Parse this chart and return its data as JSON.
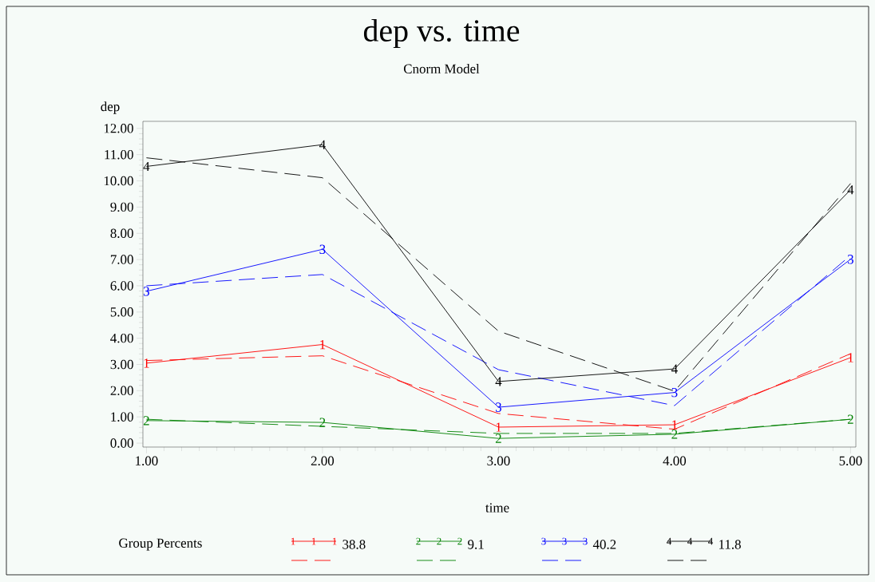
{
  "chart_data": {
    "type": "line",
    "title": "dep vs. time",
    "subtitle": "Cnorm Model",
    "xlabel": "time",
    "ylabel": "dep",
    "legend_title": "Group Percents",
    "legend": "bottom",
    "grid": false,
    "x": [
      1,
      2,
      3,
      4,
      5
    ],
    "xlim": [
      0.98,
      5.03
    ],
    "ylim": [
      -0.15,
      12.27
    ],
    "xticks": [
      {
        "value": 1,
        "label": "1.00"
      },
      {
        "value": 2,
        "label": "2.00"
      },
      {
        "value": 3,
        "label": "3.00"
      },
      {
        "value": 4,
        "label": "4.00"
      },
      {
        "value": 5,
        "label": "5.00"
      }
    ],
    "yticks": [
      {
        "value": 0,
        "label": "0.00"
      },
      {
        "value": 1,
        "label": "1.00"
      },
      {
        "value": 2,
        "label": "2.00"
      },
      {
        "value": 3,
        "label": "3.00"
      },
      {
        "value": 4,
        "label": "4.00"
      },
      {
        "value": 5,
        "label": "5.00"
      },
      {
        "value": 6,
        "label": "6.00"
      },
      {
        "value": 7,
        "label": "7.00"
      },
      {
        "value": 8,
        "label": "8.00"
      },
      {
        "value": 9,
        "label": "9.00"
      },
      {
        "value": 10,
        "label": "10.00"
      },
      {
        "value": 11,
        "label": "11.00"
      },
      {
        "value": 12,
        "label": "12.00"
      }
    ],
    "annotations": [
      {
        "text": "1",
        "x": 1,
        "y": 3.05
      },
      {
        "text": "1",
        "x": 2,
        "y": 3.76
      },
      {
        "text": "1",
        "x": 3,
        "y": 0.61
      },
      {
        "text": "1",
        "x": 4,
        "y": 0.7
      },
      {
        "text": "1",
        "x": 5,
        "y": 3.26
      },
      {
        "text": "2",
        "x": 1,
        "y": 0.86
      },
      {
        "text": "2",
        "x": 2,
        "y": 0.79
      },
      {
        "text": "2",
        "x": 3,
        "y": 0.18
      },
      {
        "text": "2",
        "x": 4,
        "y": 0.34
      },
      {
        "text": "2",
        "x": 5,
        "y": 0.91
      },
      {
        "text": "3",
        "x": 1,
        "y": 5.79
      },
      {
        "text": "3",
        "x": 2,
        "y": 7.39
      },
      {
        "text": "3",
        "x": 3,
        "y": 1.37
      },
      {
        "text": "3",
        "x": 4,
        "y": 1.93
      },
      {
        "text": "3",
        "x": 5,
        "y": 7.01
      },
      {
        "text": "4",
        "x": 1,
        "y": 10.55
      },
      {
        "text": "4",
        "x": 2,
        "y": 11.38
      },
      {
        "text": "4",
        "x": 3,
        "y": 2.35
      },
      {
        "text": "4",
        "x": 4,
        "y": 2.83
      },
      {
        "text": "4",
        "x": 5,
        "y": 9.66
      }
    ],
    "series": [
      {
        "name": "38.8",
        "color": "#ff0000",
        "line_style": "solid",
        "values": [
          3.05,
          3.76,
          0.61,
          0.7,
          3.26
        ]
      },
      {
        "color": "#ff0000",
        "line_style": "dashed",
        "values": [
          3.15,
          3.33,
          1.13,
          0.53,
          3.41
        ]
      },
      {
        "name": "9.1",
        "color": "#008000",
        "line_style": "solid",
        "values": [
          0.86,
          0.79,
          0.18,
          0.34,
          0.91
        ]
      },
      {
        "color": "#008000",
        "line_style": "dashed",
        "values": [
          0.91,
          0.64,
          0.37,
          0.37,
          0.91
        ]
      },
      {
        "name": "40.2",
        "color": "#0000ff",
        "line_style": "solid",
        "values": [
          5.79,
          7.39,
          1.37,
          1.93,
          7.01
        ]
      },
      {
        "color": "#0000ff",
        "line_style": "dashed",
        "values": [
          6.0,
          6.43,
          2.8,
          1.43,
          7.16
        ]
      },
      {
        "name": "11.8",
        "color": "#000000",
        "line_style": "solid",
        "values": [
          10.55,
          11.38,
          2.35,
          2.83,
          9.66
        ]
      },
      {
        "color": "#000000",
        "line_style": "dashed",
        "values": [
          10.88,
          10.12,
          4.27,
          1.98,
          9.9
        ]
      }
    ]
  }
}
